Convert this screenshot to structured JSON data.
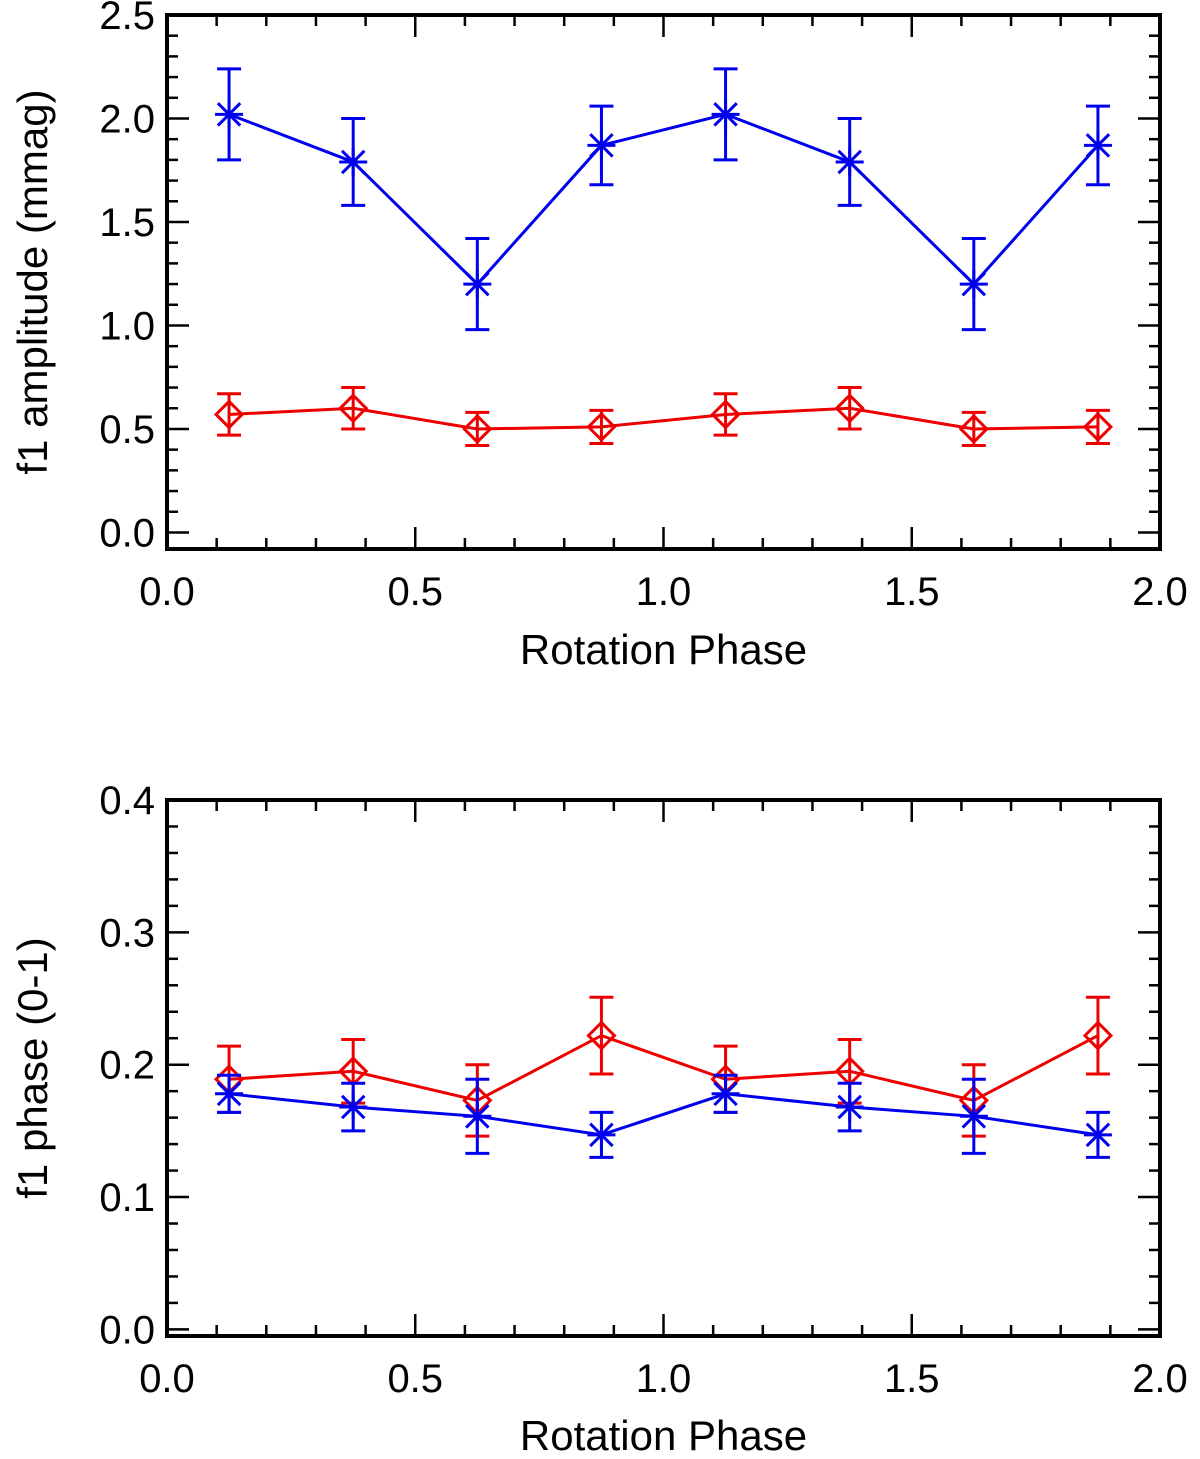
{
  "chart_data": [
    {
      "type": "line",
      "panel": "top",
      "title": "",
      "xlabel": "Rotation Phase",
      "ylabel": "f1 amplitude (mmag)",
      "xlim": [
        0.0,
        2.0
      ],
      "ylim": [
        -0.08,
        2.5
      ],
      "xticks": [
        0.0,
        0.5,
        1.0,
        1.5,
        2.0
      ],
      "xtick_labels": [
        "0.0",
        "0.5",
        "1.0",
        "1.5",
        "2.0"
      ],
      "yticks": [
        0.0,
        0.5,
        1.0,
        1.5,
        2.0,
        2.5
      ],
      "ytick_labels": [
        "0.0",
        "0.5",
        "1.0",
        "1.5",
        "2.0",
        "2.5"
      ],
      "x": [
        0.125,
        0.375,
        0.625,
        0.875,
        1.125,
        1.375,
        1.625,
        1.875
      ],
      "series": [
        {
          "name": "blue",
          "color": "#0000ee",
          "marker": "asterisk",
          "values": [
            2.02,
            1.79,
            1.2,
            1.87,
            2.02,
            1.79,
            1.2,
            1.87
          ],
          "errors": [
            0.22,
            0.21,
            0.22,
            0.19,
            0.22,
            0.21,
            0.22,
            0.19
          ]
        },
        {
          "name": "red",
          "color": "#ee0000",
          "marker": "diamond",
          "values": [
            0.57,
            0.6,
            0.5,
            0.51,
            0.57,
            0.6,
            0.5,
            0.51
          ],
          "errors": [
            0.1,
            0.1,
            0.08,
            0.08,
            0.1,
            0.1,
            0.08,
            0.08
          ]
        }
      ]
    },
    {
      "type": "line",
      "panel": "bottom",
      "title": "",
      "xlabel": "Rotation Phase",
      "ylabel": "f1 phase (0-1)",
      "xlim": [
        0.0,
        2.0
      ],
      "ylim": [
        -0.005,
        0.4
      ],
      "xticks": [
        0.0,
        0.5,
        1.0,
        1.5,
        2.0
      ],
      "xtick_labels": [
        "0.0",
        "0.5",
        "1.0",
        "1.5",
        "2.0"
      ],
      "yticks": [
        0.0,
        0.1,
        0.2,
        0.3,
        0.4
      ],
      "ytick_labels": [
        "0.0",
        "0.1",
        "0.2",
        "0.3",
        "0.4"
      ],
      "x": [
        0.125,
        0.375,
        0.625,
        0.875,
        1.125,
        1.375,
        1.625,
        1.875
      ],
      "series": [
        {
          "name": "red",
          "color": "#ee0000",
          "marker": "diamond",
          "values": [
            0.189,
            0.195,
            0.173,
            0.222,
            0.189,
            0.195,
            0.173,
            0.222
          ],
          "errors": [
            0.025,
            0.024,
            0.027,
            0.029,
            0.025,
            0.024,
            0.027,
            0.029
          ]
        },
        {
          "name": "blue",
          "color": "#0000ee",
          "marker": "asterisk",
          "values": [
            0.178,
            0.168,
            0.161,
            0.147,
            0.178,
            0.168,
            0.161,
            0.147
          ],
          "errors": [
            0.014,
            0.018,
            0.028,
            0.017,
            0.014,
            0.018,
            0.028,
            0.017
          ]
        }
      ]
    }
  ]
}
